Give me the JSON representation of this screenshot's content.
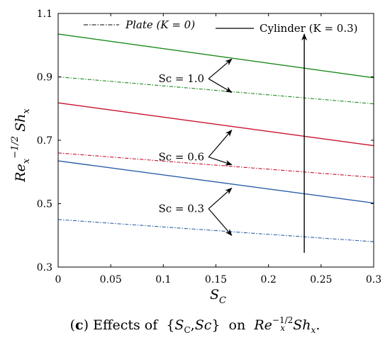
{
  "chart_data": {
    "type": "line",
    "xlabel": "S",
    "xlabel_sub": "C",
    "ylabel": "Re",
    "ylabel_sub": "x",
    "ylabel_sup": "−1/2",
    "ylabel_tail": "Sh",
    "ylabel_tail_sub": "x",
    "xlim": [
      0,
      0.3
    ],
    "ylim": [
      0.3,
      1.1
    ],
    "xticks": [
      "0",
      "0.05",
      "0.1",
      "0.15",
      "0.2",
      "0.25",
      "0.3"
    ],
    "yticks": [
      "0.3",
      "0.5",
      "0.7",
      "0.9",
      "1.1"
    ],
    "legend": {
      "plate": "Plate (K = 0)",
      "cylinder": "Cylinder (K = 0.3)",
      "placement": "top"
    },
    "series": [
      {
        "name": "Cylinder Sc = 1.0",
        "color": "#1a8a1a",
        "dash": "solid",
        "x": [
          0,
          0.3
        ],
        "y": [
          1.035,
          0.897
        ]
      },
      {
        "name": "Plate Sc = 1.0",
        "color": "#1a8a1a",
        "dash": "dashdot",
        "x": [
          0,
          0.3
        ],
        "y": [
          0.9,
          0.815
        ]
      },
      {
        "name": "Cylinder Sc = 0.6",
        "color": "#c8102e",
        "dash": "solid",
        "x": [
          0,
          0.3
        ],
        "y": [
          0.818,
          0.683
        ]
      },
      {
        "name": "Plate Sc = 0.6",
        "color": "#c8102e",
        "dash": "dashdot",
        "x": [
          0,
          0.3
        ],
        "y": [
          0.66,
          0.583
        ]
      },
      {
        "name": "Cylinder Sc = 0.3",
        "color": "#2b5ea8",
        "dash": "solid",
        "x": [
          0,
          0.3
        ],
        "y": [
          0.635,
          0.502
        ]
      },
      {
        "name": "Plate Sc = 0.3",
        "color": "#2b5ea8",
        "dash": "dashdot",
        "x": [
          0,
          0.3
        ],
        "y": [
          0.45,
          0.38
        ]
      }
    ],
    "annotations": [
      {
        "label": "Sc = 1.0",
        "anchor": [
          0.143,
          0.894
        ],
        "targets": [
          [
            0.165,
            0.956
          ],
          [
            0.165,
            0.851
          ]
        ]
      },
      {
        "label": "Sc = 0.6",
        "anchor": [
          0.143,
          0.647
        ],
        "targets": [
          [
            0.165,
            0.732
          ],
          [
            0.165,
            0.623
          ]
        ]
      },
      {
        "label": "Sc = 0.3",
        "anchor": [
          0.143,
          0.484
        ],
        "targets": [
          [
            0.165,
            0.549
          ],
          [
            0.165,
            0.4
          ]
        ]
      }
    ],
    "arrow": {
      "label": "",
      "from": [
        0.234,
        0.345
      ],
      "to": [
        0.234,
        1.035
      ]
    }
  },
  "caption": {
    "label": "c",
    "text_before": "Effects of",
    "set_open": "{",
    "s": "S",
    "s_sub": "C",
    "sep": ",",
    "sc": "Sc",
    "set_close": "}",
    "on": "on",
    "re": "Re",
    "re_sub": "x",
    "re_sup": "−1/2",
    "sh": "Sh",
    "sh_sub": "x",
    "end": "."
  }
}
